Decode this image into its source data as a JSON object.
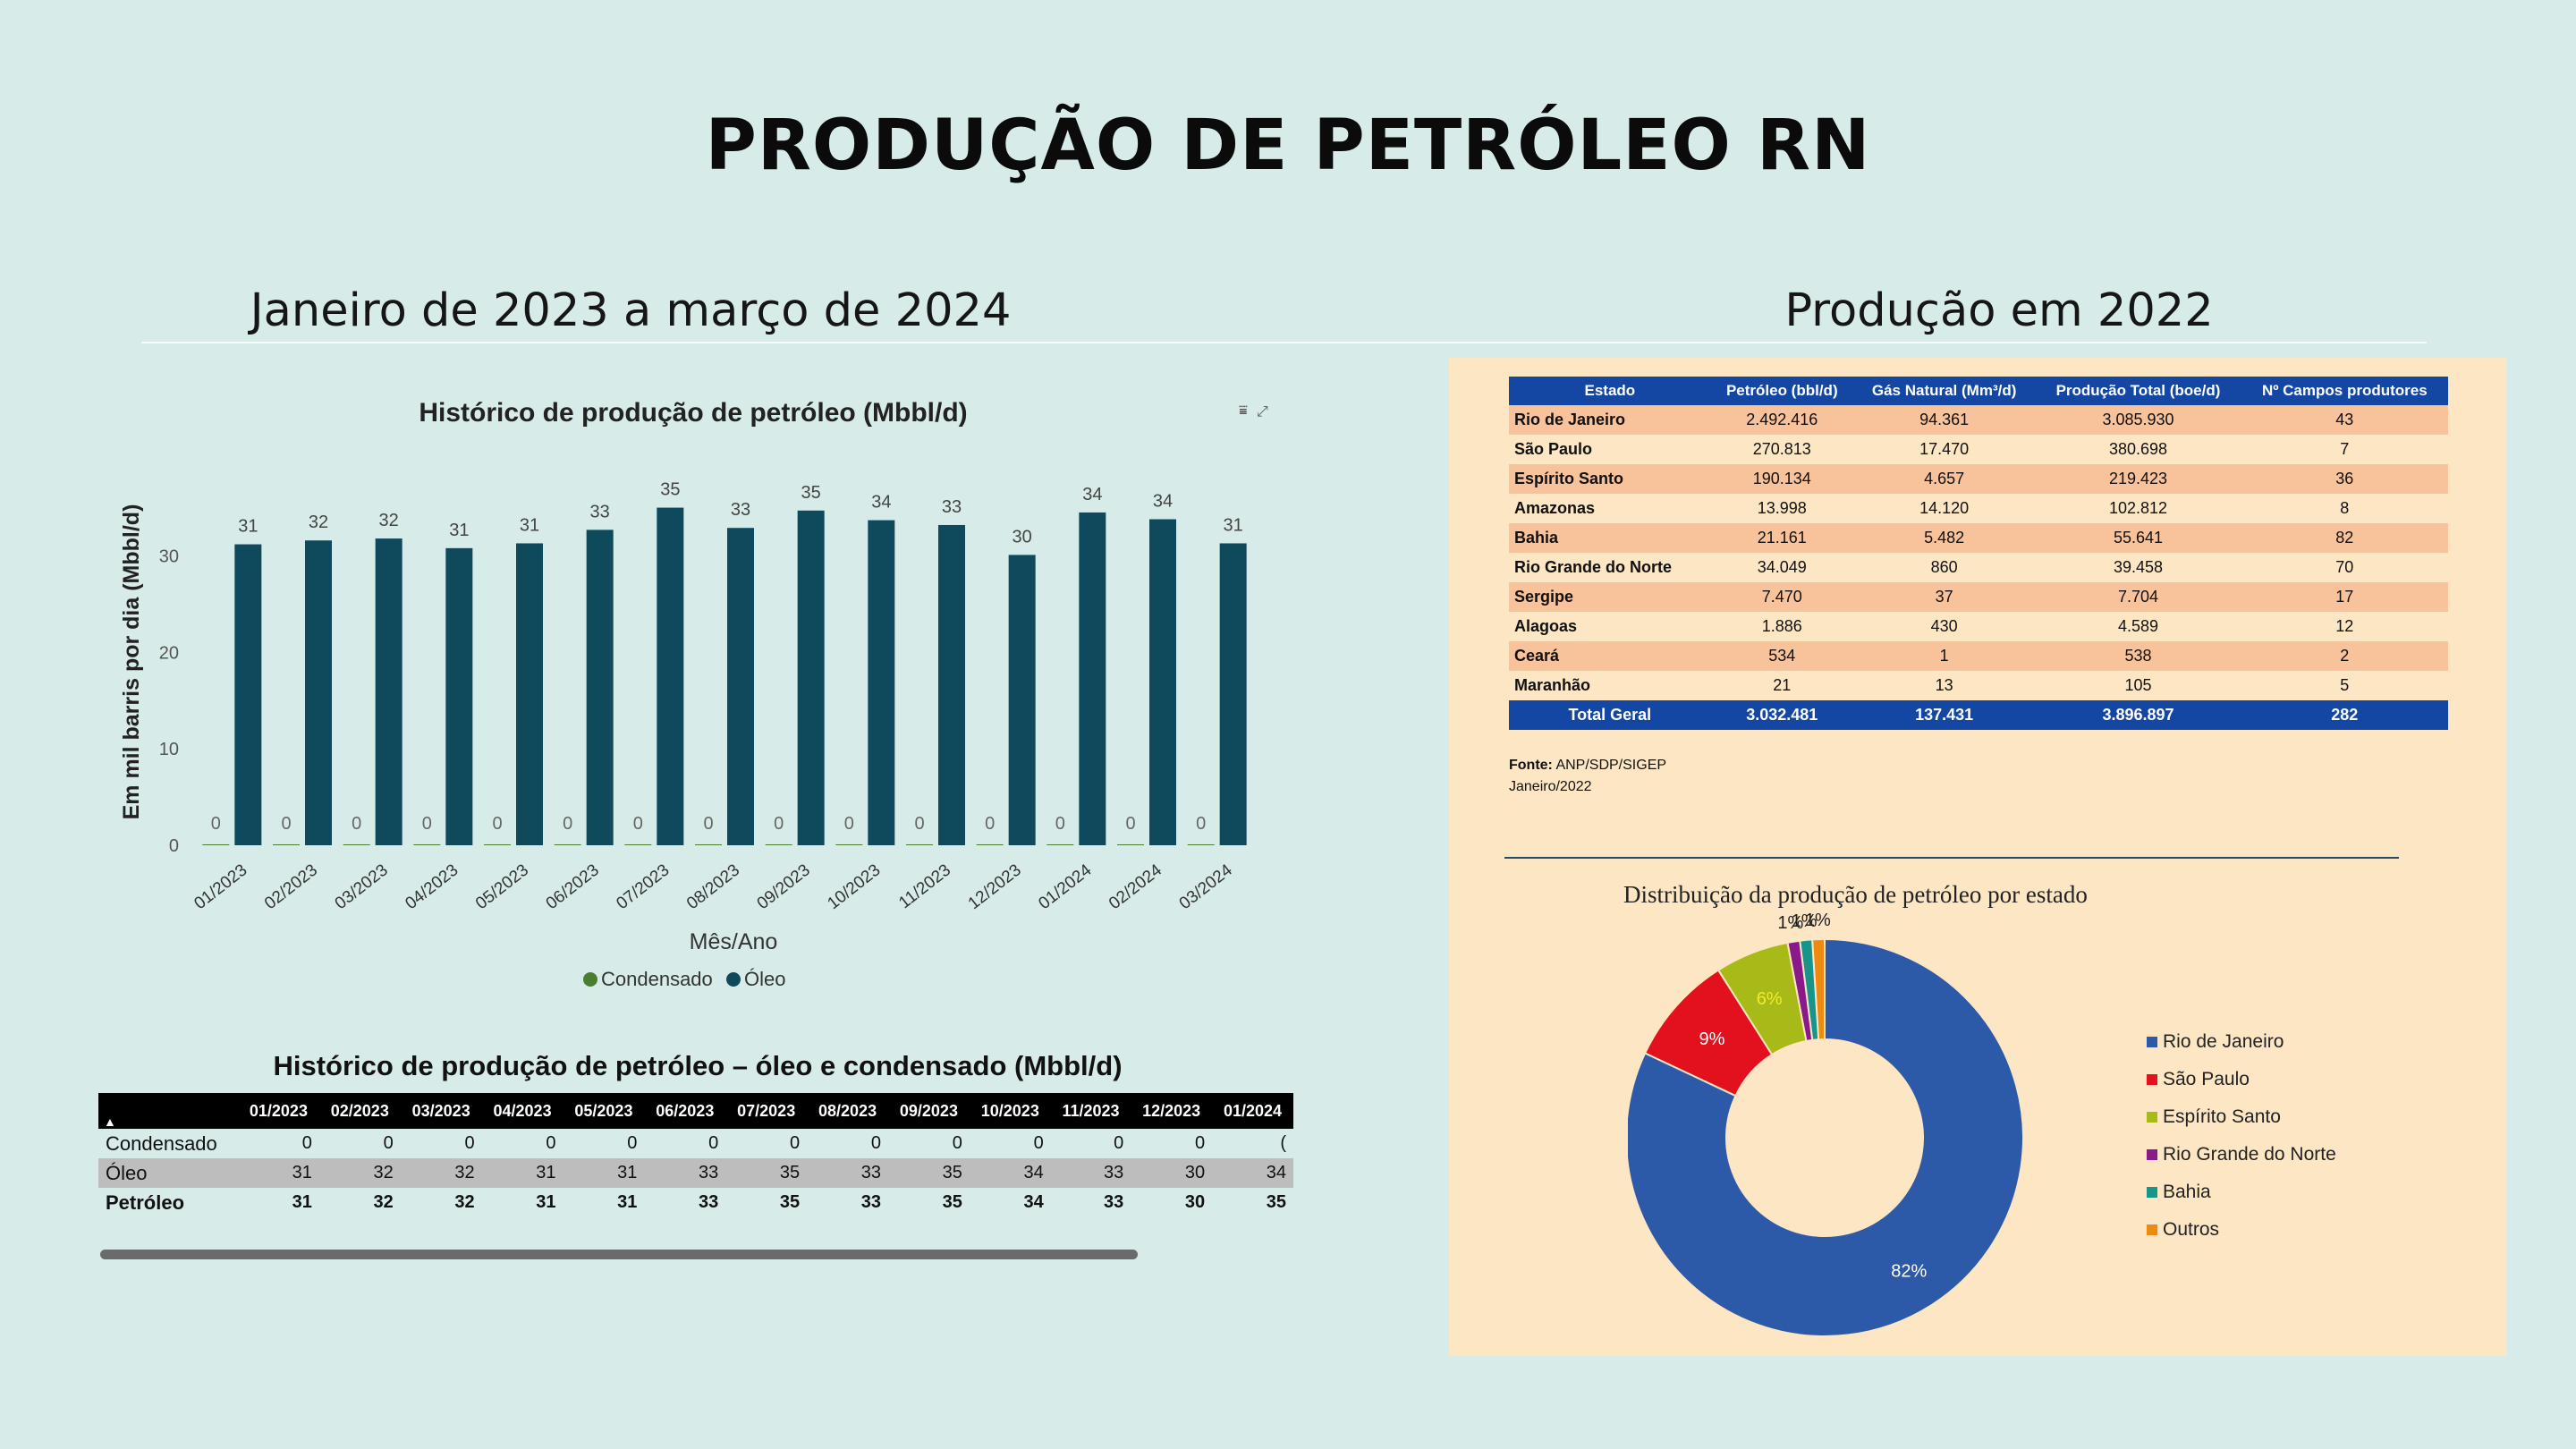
{
  "title": "PRODUÇÃO DE PETRÓLEO RN",
  "subtitle_left": "Janeiro de 2023 a março de 2024",
  "subtitle_right": "Produção em 2022",
  "colors": {
    "background": "#d7ebe9",
    "oleo": "#0e4a5c",
    "condensado": "#4a7d2f",
    "panel": "#fde6c3",
    "table_header": "#1447a3"
  },
  "chart_data": [
    {
      "type": "bar",
      "title": "Histórico de produção de petróleo (Mbbl/d)",
      "xlabel": "Mês/Ano",
      "ylabel": "Em mil barris por dia (Mbbl/d)",
      "ylim": [
        0,
        37
      ],
      "yticks": [
        0,
        10,
        20,
        30
      ],
      "categories": [
        "01/2023",
        "02/2023",
        "03/2023",
        "04/2023",
        "05/2023",
        "06/2023",
        "07/2023",
        "08/2023",
        "09/2023",
        "10/2023",
        "11/2023",
        "12/2023",
        "01/2024",
        "02/2024",
        "03/2024"
      ],
      "series": [
        {
          "name": "Condensado",
          "values": [
            0,
            0,
            0,
            0,
            0,
            0,
            0,
            0,
            0,
            0,
            0,
            0,
            0,
            0,
            0
          ]
        },
        {
          "name": "Óleo",
          "values": [
            31,
            32,
            32,
            31,
            31,
            33,
            35,
            33,
            35,
            34,
            33,
            30,
            34,
            34,
            31
          ]
        }
      ],
      "bar_heights": [
        31.2,
        31.6,
        31.8,
        30.8,
        31.3,
        32.7,
        35.0,
        32.9,
        34.7,
        33.7,
        33.2,
        30.1,
        34.5,
        33.8,
        31.3
      ],
      "legend": "bottom",
      "grid": false
    },
    {
      "type": "pie",
      "title": "Distribuição da produção de petróleo por estado",
      "labels": [
        "Rio de Janeiro",
        "São Paulo",
        "Espírito Santo",
        "Rio Grande do Norte",
        "Bahia",
        "Outros"
      ],
      "values": [
        82,
        9,
        6,
        1,
        1,
        1
      ],
      "value_labels": [
        "82%",
        "9%",
        "6%",
        "1%",
        "1%",
        "1%"
      ],
      "colors": [
        "#2c5aa8",
        "#e3101d",
        "#a7ba18",
        "#8a1a8a",
        "#17958a",
        "#ef8a10"
      ],
      "donut": true,
      "legend": "right"
    }
  ],
  "history_table": {
    "title": "Histórico de produção de petróleo – óleo e condensado (Mbbl/d)",
    "sort_icon": "▲",
    "columns": [
      "01/2023",
      "02/2023",
      "03/2023",
      "04/2023",
      "05/2023",
      "06/2023",
      "07/2023",
      "08/2023",
      "09/2023",
      "10/2023",
      "11/2023",
      "12/2023",
      "01/2024"
    ],
    "rows": [
      {
        "label": "Condensado",
        "values": [
          "0",
          "0",
          "0",
          "0",
          "0",
          "0",
          "0",
          "0",
          "0",
          "0",
          "0",
          "0",
          "("
        ]
      },
      {
        "label": "Óleo",
        "values": [
          "31",
          "32",
          "32",
          "31",
          "31",
          "33",
          "35",
          "33",
          "35",
          "34",
          "33",
          "30",
          "34"
        ]
      },
      {
        "label": "Petróleo",
        "values": [
          "31",
          "32",
          "32",
          "31",
          "31",
          "33",
          "35",
          "33",
          "35",
          "34",
          "33",
          "30",
          "35"
        ]
      }
    ]
  },
  "states_table": {
    "headers": [
      "Estado",
      "Petróleo (bbl/d)",
      "Gás Natural (Mm³/d)",
      "Produção Total (boe/d)",
      "Nº Campos produtores"
    ],
    "rows": [
      [
        "Rio de Janeiro",
        "2.492.416",
        "94.361",
        "3.085.930",
        "43"
      ],
      [
        "São Paulo",
        "270.813",
        "17.470",
        "380.698",
        "7"
      ],
      [
        "Espírito Santo",
        "190.134",
        "4.657",
        "219.423",
        "36"
      ],
      [
        "Amazonas",
        "13.998",
        "14.120",
        "102.812",
        "8"
      ],
      [
        "Bahia",
        "21.161",
        "5.482",
        "55.641",
        "82"
      ],
      [
        "Rio Grande do Norte",
        "34.049",
        "860",
        "39.458",
        "70"
      ],
      [
        "Sergipe",
        "7.470",
        "37",
        "7.704",
        "17"
      ],
      [
        "Alagoas",
        "1.886",
        "430",
        "4.589",
        "12"
      ],
      [
        "Ceará",
        "534",
        "1",
        "538",
        "2"
      ],
      [
        "Maranhão",
        "21",
        "13",
        "105",
        "5"
      ]
    ],
    "total": [
      "Total Geral",
      "3.032.481",
      "137.431",
      "3.896.897",
      "282"
    ],
    "source_label": "Fonte:",
    "source": "ANP/SDP/SIGEP",
    "source_date": "Janeiro/2022"
  }
}
